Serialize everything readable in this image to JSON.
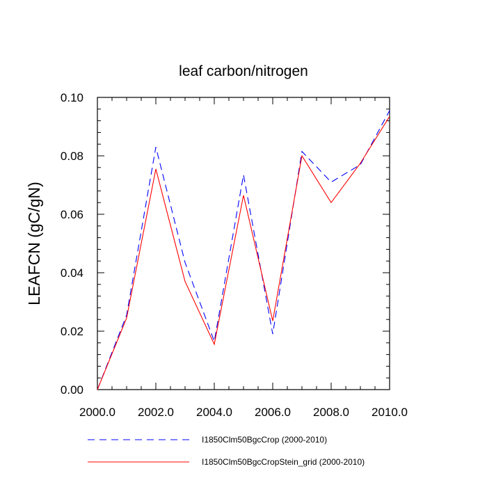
{
  "chart_data": {
    "type": "line",
    "title": "leaf carbon/nitrogen",
    "xlabel": "",
    "ylabel": "LEAFCN  (gC/gN)",
    "xlim": [
      2000,
      2010
    ],
    "ylim": [
      0,
      0.1
    ],
    "x_ticks": [
      2000,
      2002,
      2004,
      2006,
      2008,
      2010
    ],
    "x_tick_labels": [
      "2000.0",
      "2002.0",
      "2004.0",
      "2006.0",
      "2008.0",
      "2010.0"
    ],
    "y_ticks": [
      0,
      0.02,
      0.04,
      0.06,
      0.08,
      0.1
    ],
    "y_tick_labels": [
      "0.00",
      "0.02",
      "0.04",
      "0.06",
      "0.08",
      "0.10"
    ],
    "grid": false,
    "legend_position": "bottom",
    "x": [
      2000,
      2001,
      2002,
      2003,
      2004,
      2005,
      2006,
      2007,
      2008,
      2009,
      2010
    ],
    "series": [
      {
        "name": "I1850Clm50BgcCrop (2000-2010)",
        "color": "#0000ff",
        "dash": "dashed",
        "values": [
          0.0,
          0.0255,
          0.083,
          0.0435,
          0.0165,
          0.0735,
          0.019,
          0.0815,
          0.071,
          0.077,
          0.0955
        ]
      },
      {
        "name": "I1850Clm50BgcCropStein_grid (2000-2010)",
        "color": "#ff0000",
        "dash": "solid",
        "values": [
          0.0,
          0.0245,
          0.0755,
          0.037,
          0.0155,
          0.0665,
          0.0235,
          0.08,
          0.064,
          0.0775,
          0.0935
        ]
      }
    ]
  }
}
